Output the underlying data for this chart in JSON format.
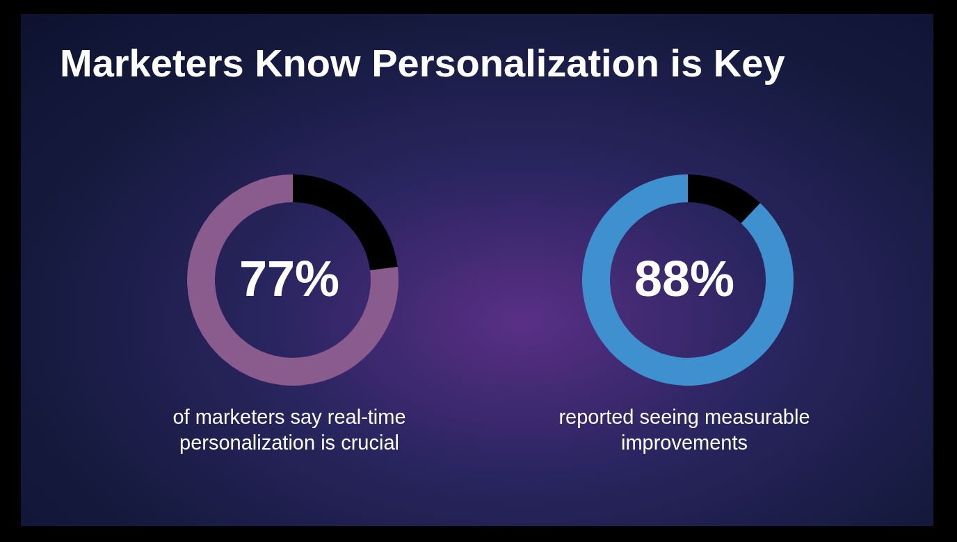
{
  "chart_data": [
    {
      "type": "donut",
      "title": "Marketers Know Personalization is Key",
      "categories": [
        null,
        null
      ],
      "values": [
        23,
        77
      ],
      "colors": [
        "#000000",
        "#8a5b8d"
      ],
      "annotations": [
        "77%",
        "of marketers say real-time personalization is crucial"
      ]
    },
    {
      "type": "donut",
      "categories": [
        null,
        null
      ],
      "values": [
        12,
        88
      ],
      "colors": [
        "#000000",
        "#3f90cf"
      ],
      "annotations": [
        "88%",
        "reported seeing measurable improvements"
      ]
    }
  ]
}
